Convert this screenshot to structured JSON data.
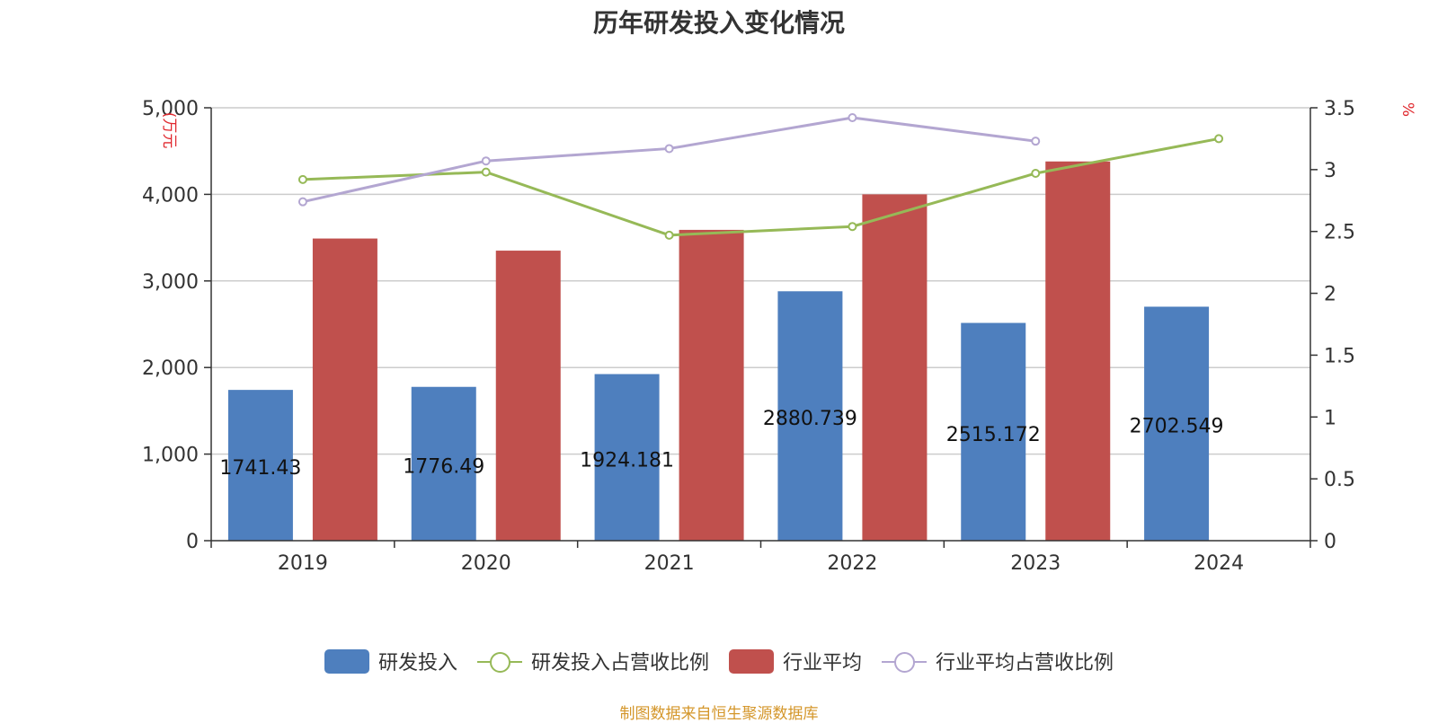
{
  "title": "历年研发投入变化情况",
  "source_note": "制图数据来自恒生聚源数据库",
  "chart_data": {
    "type": "bar",
    "title": "历年研发投入变化情况",
    "categories": [
      "2019",
      "2020",
      "2021",
      "2022",
      "2023",
      "2024"
    ],
    "y_left": {
      "label": "(万元",
      "ylim": [
        0,
        5000
      ],
      "ticks": [
        0,
        1000,
        2000,
        3000,
        4000,
        5000
      ],
      "tick_labels": [
        "0",
        "1,000",
        "2,000",
        "3,000",
        "4,000",
        "5,000"
      ]
    },
    "y_right": {
      "label": "%",
      "ylim": [
        0,
        3.5
      ],
      "ticks": [
        0,
        0.5,
        1,
        1.5,
        2,
        2.5,
        3,
        3.5
      ],
      "tick_labels": [
        "0",
        "0.5",
        "1",
        "1.5",
        "2",
        "2.5",
        "3",
        "3.5"
      ]
    },
    "grid": true,
    "legend_position": "bottom",
    "series": [
      {
        "name": "研发投入",
        "type": "bar",
        "axis": "left",
        "color": "#4e7fbe",
        "values": [
          1741.43,
          1776.49,
          1924.181,
          2880.739,
          2515.172,
          2702.549
        ],
        "labels": [
          "1741.43",
          "1776.49",
          "1924.181",
          "2880.739",
          "2515.172",
          "2702.549"
        ]
      },
      {
        "name": "研发投入占营收比例",
        "type": "line",
        "axis": "right",
        "color": "#96b957",
        "values": [
          2.92,
          2.98,
          2.47,
          2.54,
          2.97,
          3.25
        ]
      },
      {
        "name": "行业平均",
        "type": "bar",
        "axis": "left",
        "color": "#c0504d",
        "values": [
          3490,
          3350,
          3590,
          4000,
          4380,
          null
        ]
      },
      {
        "name": "行业平均占营收比例",
        "type": "line",
        "axis": "right",
        "color": "#b3a6d1",
        "values": [
          2.74,
          3.07,
          3.17,
          3.42,
          3.23,
          null
        ]
      }
    ]
  }
}
